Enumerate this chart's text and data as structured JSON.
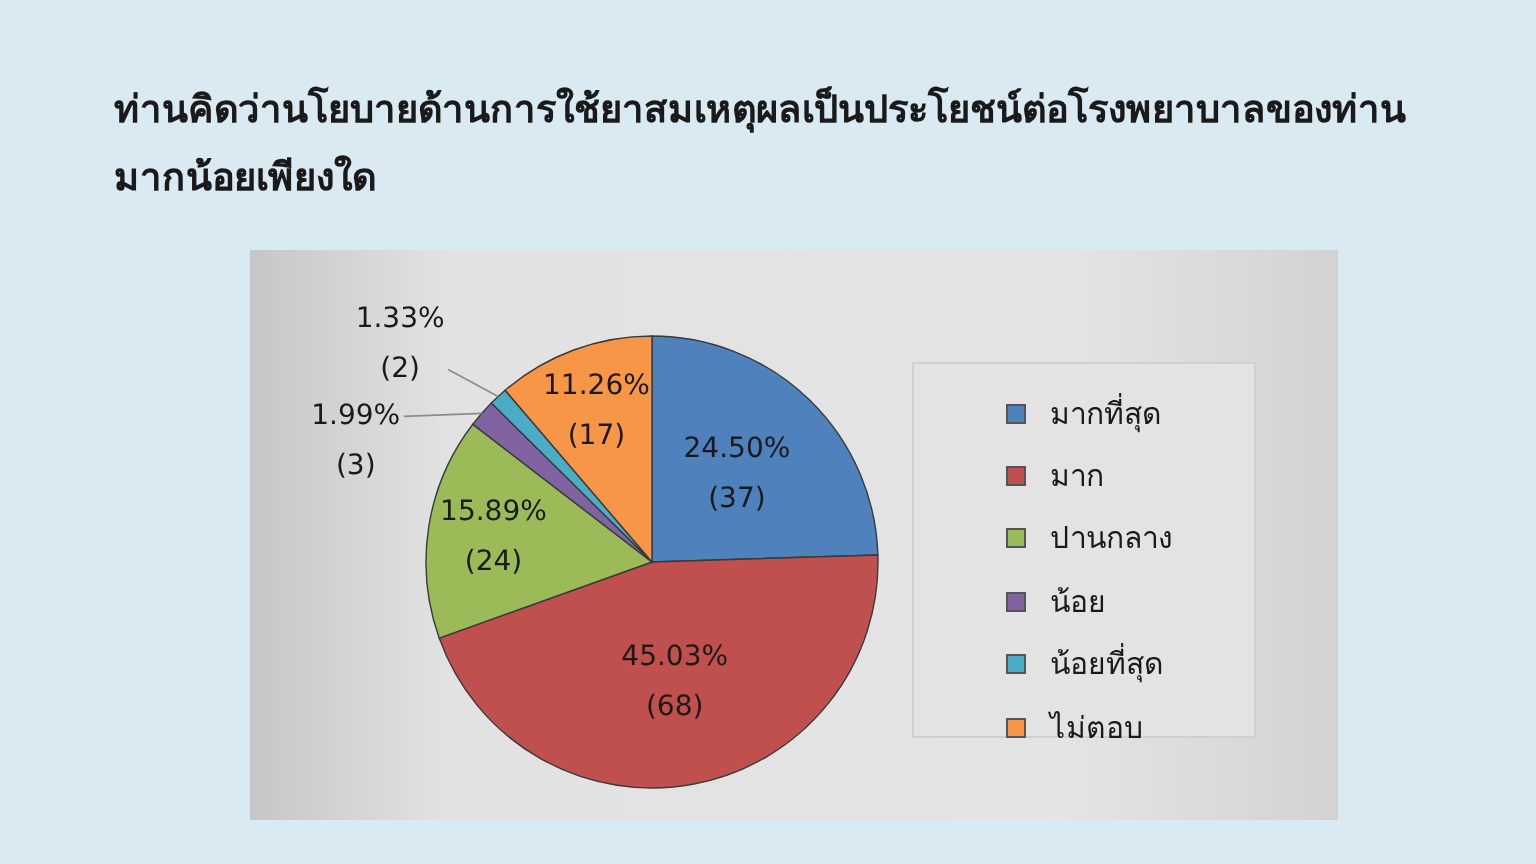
{
  "chart_data": {
    "type": "pie",
    "title": "ท่านคิดว่านโยบายด้านการใช้ยาสมเหตุผลเป็นประโยชน์ต่อโรงพยาบาลของท่านมากน้อยเพียงใด",
    "categories": [
      "มากที่สุด",
      "มาก",
      "ปานกลาง",
      "น้อย",
      "น้อยที่สุด",
      "ไม่ตอบ"
    ],
    "values": [
      37,
      68,
      24,
      3,
      2,
      17
    ],
    "colors": [
      "#4f81bd",
      "#c0504d",
      "#9bbb59",
      "#8064a2",
      "#4bacc6",
      "#f79646"
    ],
    "value_labels": [
      "24.50%\n(37)",
      "45.03%\n(68)",
      "15.89%\n(24)",
      "1.99%\n(3)",
      "1.33%\n(2)",
      "11.26%\n(17)"
    ],
    "legend": "right"
  }
}
